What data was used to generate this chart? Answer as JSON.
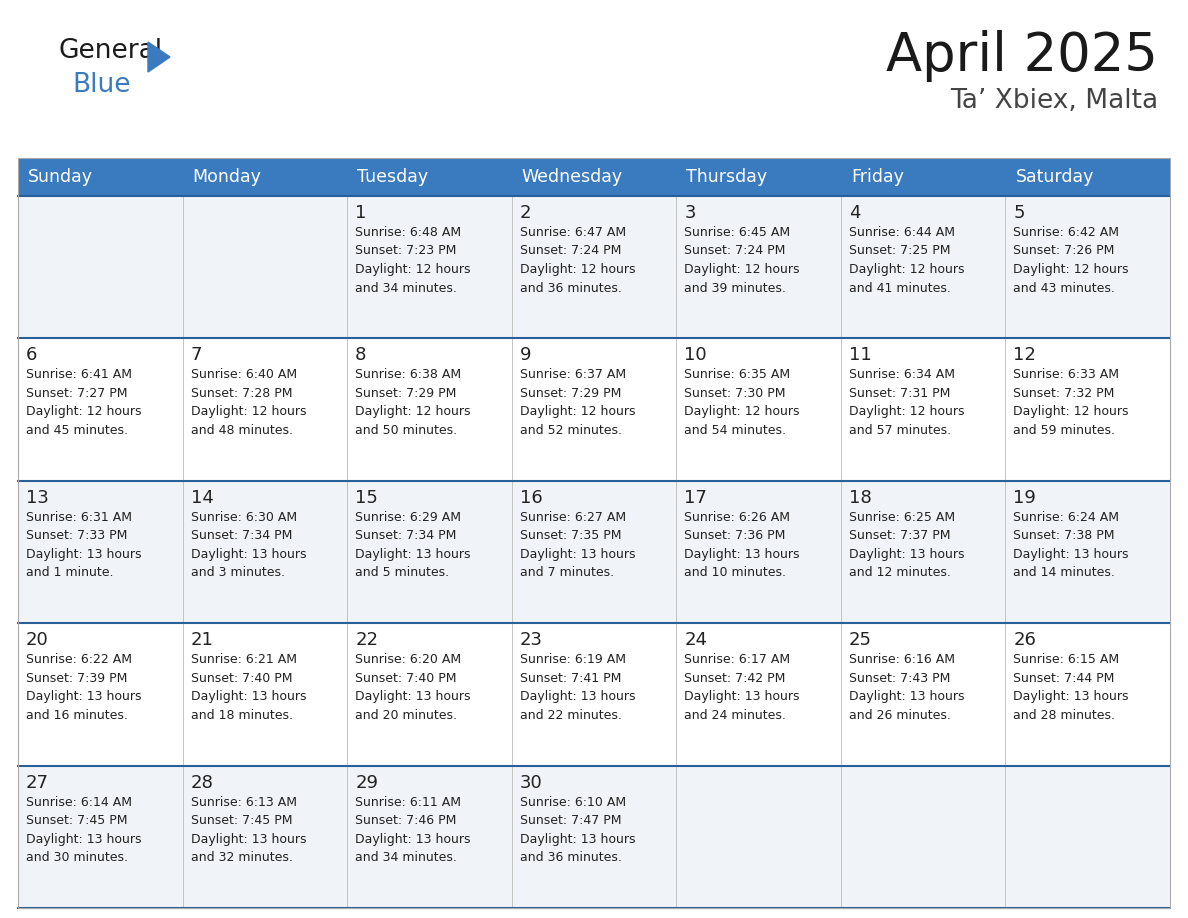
{
  "title": "April 2025",
  "subtitle": "Ta’ Xbiex, Malta",
  "header_bg": "#3a7abf",
  "header_text": "#ffffff",
  "cell_bg_odd": "#f0f4f8",
  "cell_bg_even": "#ffffff",
  "divider_color": "#2a6099",
  "text_color": "#222222",
  "subtext_color": "#444444",
  "days_of_week": [
    "Sunday",
    "Monday",
    "Tuesday",
    "Wednesday",
    "Thursday",
    "Friday",
    "Saturday"
  ],
  "weeks": [
    [
      {
        "day": "",
        "sunrise": "",
        "sunset": "",
        "daylight": ""
      },
      {
        "day": "",
        "sunrise": "",
        "sunset": "",
        "daylight": ""
      },
      {
        "day": "1",
        "sunrise": "Sunrise: 6:48 AM",
        "sunset": "Sunset: 7:23 PM",
        "daylight": "Daylight: 12 hours\nand 34 minutes."
      },
      {
        "day": "2",
        "sunrise": "Sunrise: 6:47 AM",
        "sunset": "Sunset: 7:24 PM",
        "daylight": "Daylight: 12 hours\nand 36 minutes."
      },
      {
        "day": "3",
        "sunrise": "Sunrise: 6:45 AM",
        "sunset": "Sunset: 7:24 PM",
        "daylight": "Daylight: 12 hours\nand 39 minutes."
      },
      {
        "day": "4",
        "sunrise": "Sunrise: 6:44 AM",
        "sunset": "Sunset: 7:25 PM",
        "daylight": "Daylight: 12 hours\nand 41 minutes."
      },
      {
        "day": "5",
        "sunrise": "Sunrise: 6:42 AM",
        "sunset": "Sunset: 7:26 PM",
        "daylight": "Daylight: 12 hours\nand 43 minutes."
      }
    ],
    [
      {
        "day": "6",
        "sunrise": "Sunrise: 6:41 AM",
        "sunset": "Sunset: 7:27 PM",
        "daylight": "Daylight: 12 hours\nand 45 minutes."
      },
      {
        "day": "7",
        "sunrise": "Sunrise: 6:40 AM",
        "sunset": "Sunset: 7:28 PM",
        "daylight": "Daylight: 12 hours\nand 48 minutes."
      },
      {
        "day": "8",
        "sunrise": "Sunrise: 6:38 AM",
        "sunset": "Sunset: 7:29 PM",
        "daylight": "Daylight: 12 hours\nand 50 minutes."
      },
      {
        "day": "9",
        "sunrise": "Sunrise: 6:37 AM",
        "sunset": "Sunset: 7:29 PM",
        "daylight": "Daylight: 12 hours\nand 52 minutes."
      },
      {
        "day": "10",
        "sunrise": "Sunrise: 6:35 AM",
        "sunset": "Sunset: 7:30 PM",
        "daylight": "Daylight: 12 hours\nand 54 minutes."
      },
      {
        "day": "11",
        "sunrise": "Sunrise: 6:34 AM",
        "sunset": "Sunset: 7:31 PM",
        "daylight": "Daylight: 12 hours\nand 57 minutes."
      },
      {
        "day": "12",
        "sunrise": "Sunrise: 6:33 AM",
        "sunset": "Sunset: 7:32 PM",
        "daylight": "Daylight: 12 hours\nand 59 minutes."
      }
    ],
    [
      {
        "day": "13",
        "sunrise": "Sunrise: 6:31 AM",
        "sunset": "Sunset: 7:33 PM",
        "daylight": "Daylight: 13 hours\nand 1 minute."
      },
      {
        "day": "14",
        "sunrise": "Sunrise: 6:30 AM",
        "sunset": "Sunset: 7:34 PM",
        "daylight": "Daylight: 13 hours\nand 3 minutes."
      },
      {
        "day": "15",
        "sunrise": "Sunrise: 6:29 AM",
        "sunset": "Sunset: 7:34 PM",
        "daylight": "Daylight: 13 hours\nand 5 minutes."
      },
      {
        "day": "16",
        "sunrise": "Sunrise: 6:27 AM",
        "sunset": "Sunset: 7:35 PM",
        "daylight": "Daylight: 13 hours\nand 7 minutes."
      },
      {
        "day": "17",
        "sunrise": "Sunrise: 6:26 AM",
        "sunset": "Sunset: 7:36 PM",
        "daylight": "Daylight: 13 hours\nand 10 minutes."
      },
      {
        "day": "18",
        "sunrise": "Sunrise: 6:25 AM",
        "sunset": "Sunset: 7:37 PM",
        "daylight": "Daylight: 13 hours\nand 12 minutes."
      },
      {
        "day": "19",
        "sunrise": "Sunrise: 6:24 AM",
        "sunset": "Sunset: 7:38 PM",
        "daylight": "Daylight: 13 hours\nand 14 minutes."
      }
    ],
    [
      {
        "day": "20",
        "sunrise": "Sunrise: 6:22 AM",
        "sunset": "Sunset: 7:39 PM",
        "daylight": "Daylight: 13 hours\nand 16 minutes."
      },
      {
        "day": "21",
        "sunrise": "Sunrise: 6:21 AM",
        "sunset": "Sunset: 7:40 PM",
        "daylight": "Daylight: 13 hours\nand 18 minutes."
      },
      {
        "day": "22",
        "sunrise": "Sunrise: 6:20 AM",
        "sunset": "Sunset: 7:40 PM",
        "daylight": "Daylight: 13 hours\nand 20 minutes."
      },
      {
        "day": "23",
        "sunrise": "Sunrise: 6:19 AM",
        "sunset": "Sunset: 7:41 PM",
        "daylight": "Daylight: 13 hours\nand 22 minutes."
      },
      {
        "day": "24",
        "sunrise": "Sunrise: 6:17 AM",
        "sunset": "Sunset: 7:42 PM",
        "daylight": "Daylight: 13 hours\nand 24 minutes."
      },
      {
        "day": "25",
        "sunrise": "Sunrise: 6:16 AM",
        "sunset": "Sunset: 7:43 PM",
        "daylight": "Daylight: 13 hours\nand 26 minutes."
      },
      {
        "day": "26",
        "sunrise": "Sunrise: 6:15 AM",
        "sunset": "Sunset: 7:44 PM",
        "daylight": "Daylight: 13 hours\nand 28 minutes."
      }
    ],
    [
      {
        "day": "27",
        "sunrise": "Sunrise: 6:14 AM",
        "sunset": "Sunset: 7:45 PM",
        "daylight": "Daylight: 13 hours\nand 30 minutes."
      },
      {
        "day": "28",
        "sunrise": "Sunrise: 6:13 AM",
        "sunset": "Sunset: 7:45 PM",
        "daylight": "Daylight: 13 hours\nand 32 minutes."
      },
      {
        "day": "29",
        "sunrise": "Sunrise: 6:11 AM",
        "sunset": "Sunset: 7:46 PM",
        "daylight": "Daylight: 13 hours\nand 34 minutes."
      },
      {
        "day": "30",
        "sunrise": "Sunrise: 6:10 AM",
        "sunset": "Sunset: 7:47 PM",
        "daylight": "Daylight: 13 hours\nand 36 minutes."
      },
      {
        "day": "",
        "sunrise": "",
        "sunset": "",
        "daylight": ""
      },
      {
        "day": "",
        "sunrise": "",
        "sunset": "",
        "daylight": ""
      },
      {
        "day": "",
        "sunrise": "",
        "sunset": "",
        "daylight": ""
      }
    ]
  ],
  "logo_general_color": "#1a1a1a",
  "logo_blue_color": "#3a7abf",
  "title_color": "#1a1a1a",
  "subtitle_color": "#444444"
}
